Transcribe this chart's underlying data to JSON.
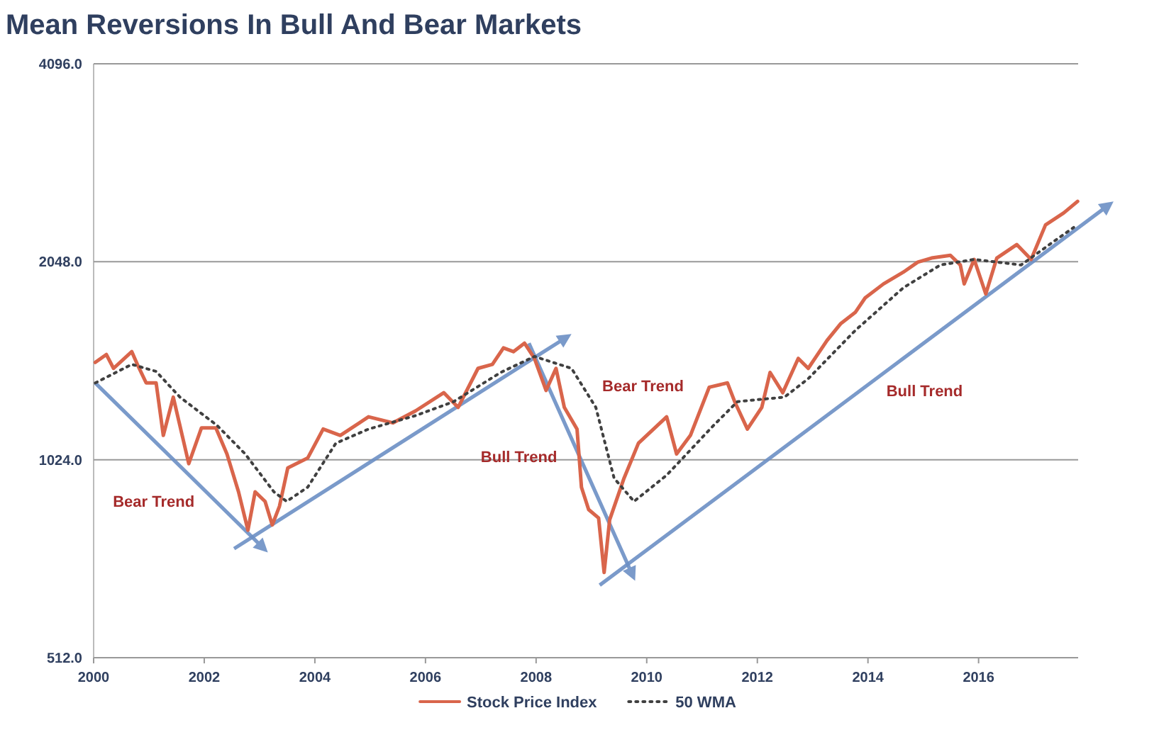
{
  "chart_data": {
    "type": "line",
    "title": "Mean Reversions In Bull And Bear Markets",
    "log": "y",
    "grid": "y",
    "legend": "bottom",
    "xlim": [
      2000,
      2017.8
    ],
    "xticks": [
      2000,
      2002,
      2004,
      2006,
      2008,
      2010,
      2012,
      2014,
      2016
    ],
    "ylim": [
      512,
      4096
    ],
    "yticks": [
      {
        "value": 512,
        "label": "512.0"
      },
      {
        "value": 1024,
        "label": "1024.0"
      },
      {
        "value": 2048,
        "label": "2048.0"
      },
      {
        "value": 4096,
        "label": "4096.0"
      }
    ],
    "annotations": [
      "Bear Trend",
      "Bull Trend",
      "Bear Trend",
      "Bull Trend"
    ],
    "series": [
      {
        "name": "Stock Price Index",
        "color": "#d9654b",
        "line_style": "solid",
        "x": [
          2000.03,
          2000.23,
          2000.36,
          2000.69,
          2000.79,
          2000.95,
          2001.13,
          2001.26,
          2001.44,
          2001.72,
          2001.95,
          2002.21,
          2002.41,
          2002.62,
          2002.79,
          2002.92,
          2003.1,
          2003.23,
          2003.36,
          2003.51,
          2003.87,
          2004.15,
          2004.46,
          2004.97,
          2005.41,
          2005.82,
          2006.33,
          2006.59,
          2006.95,
          2007.21,
          2007.41,
          2007.59,
          2007.79,
          2007.97,
          2008.18,
          2008.36,
          2008.51,
          2008.74,
          2008.82,
          2008.95,
          2009.13,
          2009.23,
          2009.33,
          2009.59,
          2009.85,
          2010.36,
          2010.54,
          2010.79,
          2011.13,
          2011.46,
          2011.59,
          2011.82,
          2012.08,
          2012.23,
          2012.46,
          2012.74,
          2012.92,
          2013.26,
          2013.51,
          2013.77,
          2013.95,
          2014.28,
          2014.64,
          2014.9,
          2015.15,
          2015.49,
          2015.67,
          2015.74,
          2015.92,
          2016.13,
          2016.33,
          2016.69,
          2016.95,
          2017.21,
          2017.54,
          2017.79
        ],
        "values": [
          1440,
          1480,
          1410,
          1495,
          1430,
          1340,
          1340,
          1115,
          1275,
          1010,
          1145,
          1145,
          1045,
          915,
          800,
          915,
          885,
          815,
          870,
          995,
          1030,
          1140,
          1115,
          1190,
          1165,
          1215,
          1295,
          1230,
          1410,
          1430,
          1515,
          1495,
          1540,
          1460,
          1305,
          1410,
          1230,
          1140,
          930,
          860,
          835,
          690,
          830,
          960,
          1085,
          1190,
          1045,
          1115,
          1320,
          1340,
          1255,
          1140,
          1230,
          1390,
          1295,
          1460,
          1410,
          1555,
          1650,
          1715,
          1805,
          1895,
          1975,
          2045,
          2075,
          2095,
          2025,
          1895,
          2065,
          1830,
          2075,
          2175,
          2065,
          2330,
          2430,
          2530
        ]
      },
      {
        "name": "50 WMA",
        "color": "#404040",
        "line_style": "dotted",
        "x": [
          2000.03,
          2000.69,
          2001.13,
          2001.56,
          2002.23,
          2002.74,
          2003.26,
          2003.49,
          2003.87,
          2004.38,
          2004.97,
          2005.82,
          2006.51,
          2007.36,
          2007.97,
          2008.64,
          2009.08,
          2009.41,
          2009.77,
          2010.36,
          2011.21,
          2011.64,
          2012.49,
          2012.92,
          2013.77,
          2014.64,
          2015.31,
          2015.92,
          2016.77,
          2017.28,
          2017.72
        ],
        "values": [
          1340,
          1430,
          1395,
          1275,
          1155,
          1045,
          915,
          885,
          930,
          1085,
          1140,
          1195,
          1255,
          1390,
          1470,
          1410,
          1230,
          960,
          885,
          970,
          1155,
          1255,
          1275,
          1360,
          1610,
          1870,
          2025,
          2065,
          2025,
          2175,
          2310
        ]
      }
    ]
  }
}
